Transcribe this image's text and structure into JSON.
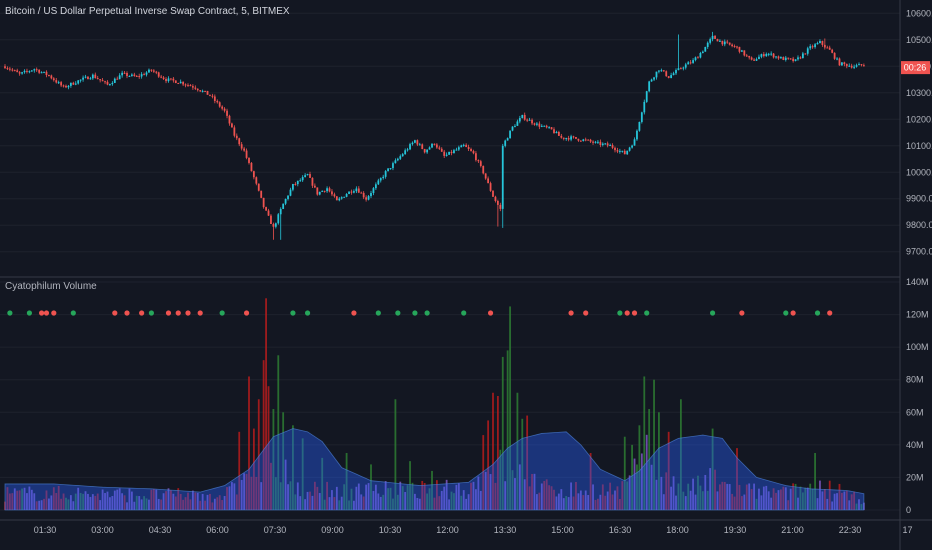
{
  "header": {
    "title": "Bitcoin / US Dollar Perpetual Inverse Swap Contract, 5, BITMEX"
  },
  "indicator": {
    "title": "Cyatophilum Volume"
  },
  "colors": {
    "background": "#131722",
    "up": "#26c6da",
    "down": "#ef5350",
    "dot_up": "#26a65b",
    "dot_down": "#ef5350",
    "vol_up": "#2e7d32",
    "vol_down": "#b71c1c",
    "vol_neutral": "#7e57c2",
    "ma_area": "#2962ff",
    "price_tag": "#ef5350"
  },
  "price_tag": {
    "label": "00:26",
    "value": 10395
  },
  "chart_data": [
    {
      "type": "candlestick",
      "title": "Bitcoin / US Dollar Perpetual Inverse Swap Contract, 5, BITMEX",
      "x_ticks": [
        "01:30",
        "03:00",
        "04:30",
        "06:00",
        "07:30",
        "09:00",
        "10:30",
        "12:00",
        "13:30",
        "15:00",
        "16:30",
        "18:00",
        "19:30",
        "21:00",
        "22:30",
        "17"
      ],
      "y_ticks": [
        9700,
        9800,
        9900,
        10000,
        10100,
        10200,
        10300,
        10400,
        10500,
        10600
      ],
      "y_tick_labels": [
        "9700.0",
        "9800.0",
        "9900.0",
        "10000.0",
        "10100.0",
        "10200.0",
        "10300.0",
        "10400.0",
        "10500.0",
        "10600.0"
      ],
      "ylim": [
        9665,
        10620
      ],
      "close_path": [
        [
          0,
          10400
        ],
        [
          6,
          10370
        ],
        [
          12,
          10390
        ],
        [
          18,
          10365
        ],
        [
          24,
          10320
        ],
        [
          30,
          10345
        ],
        [
          36,
          10365
        ],
        [
          42,
          10330
        ],
        [
          48,
          10370
        ],
        [
          54,
          10360
        ],
        [
          60,
          10385
        ],
        [
          66,
          10350
        ],
        [
          72,
          10340
        ],
        [
          78,
          10320
        ],
        [
          84,
          10290
        ],
        [
          90,
          10230
        ],
        [
          94,
          10140
        ],
        [
          98,
          10080
        ],
        [
          102,
          9980
        ],
        [
          106,
          9870
        ],
        [
          110,
          9790
        ],
        [
          114,
          9880
        ],
        [
          118,
          9950
        ],
        [
          124,
          9990
        ],
        [
          128,
          9920
        ],
        [
          132,
          9940
        ],
        [
          136,
          9890
        ],
        [
          140,
          9920
        ],
        [
          144,
          9940
        ],
        [
          148,
          9900
        ],
        [
          152,
          9950
        ],
        [
          156,
          10000
        ],
        [
          160,
          10040
        ],
        [
          164,
          10080
        ],
        [
          168,
          10120
        ],
        [
          172,
          10080
        ],
        [
          176,
          10110
        ],
        [
          180,
          10060
        ],
        [
          184,
          10080
        ],
        [
          188,
          10100
        ],
        [
          192,
          10070
        ],
        [
          196,
          10000
        ],
        [
          200,
          9910
        ],
        [
          203,
          9860
        ],
        [
          204,
          10100
        ],
        [
          208,
          10170
        ],
        [
          212,
          10210
        ],
        [
          218,
          10180
        ],
        [
          224,
          10160
        ],
        [
          228,
          10130
        ],
        [
          232,
          10130
        ],
        [
          238,
          10120
        ],
        [
          242,
          10110
        ],
        [
          248,
          10100
        ],
        [
          254,
          10070
        ],
        [
          258,
          10120
        ],
        [
          262,
          10270
        ],
        [
          264,
          10340
        ],
        [
          268,
          10390
        ],
        [
          272,
          10360
        ],
        [
          278,
          10400
        ],
        [
          282,
          10420
        ],
        [
          286,
          10460
        ],
        [
          290,
          10510
        ],
        [
          294,
          10490
        ],
        [
          300,
          10470
        ],
        [
          306,
          10420
        ],
        [
          312,
          10450
        ],
        [
          318,
          10430
        ],
        [
          324,
          10420
        ],
        [
          330,
          10470
        ],
        [
          334,
          10490
        ],
        [
          338,
          10460
        ],
        [
          342,
          10410
        ],
        [
          348,
          10400
        ],
        [
          352,
          10405
        ]
      ],
      "highlights": [
        [
          110,
          9745
        ],
        [
          113,
          9745
        ],
        [
          202,
          9795
        ],
        [
          204,
          9790
        ],
        [
          276,
          10520
        ],
        [
          290,
          10530
        ],
        [
          336,
          10505
        ]
      ]
    },
    {
      "type": "bar",
      "title": "Cyatophilum Volume",
      "y_ticks": [
        0,
        20,
        40,
        60,
        80,
        100,
        120,
        140
      ],
      "y_tick_labels": [
        "0",
        "20M",
        "40M",
        "60M",
        "80M",
        "100M",
        "120M",
        "140M"
      ],
      "ylim": [
        0,
        140
      ],
      "unit": "M",
      "base_volume": [
        [
          0,
          10
        ],
        [
          30,
          10
        ],
        [
          60,
          9
        ],
        [
          90,
          9
        ],
        [
          100,
          18
        ],
        [
          110,
          26
        ],
        [
          116,
          22
        ],
        [
          124,
          12
        ],
        [
          140,
          11
        ],
        [
          150,
          12
        ],
        [
          170,
          12
        ],
        [
          190,
          13
        ],
        [
          200,
          25
        ],
        [
          210,
          28
        ],
        [
          220,
          13
        ],
        [
          240,
          12
        ],
        [
          255,
          12
        ],
        [
          262,
          34
        ],
        [
          270,
          18
        ],
        [
          280,
          12
        ],
        [
          290,
          18
        ],
        [
          300,
          12
        ],
        [
          320,
          10
        ],
        [
          330,
          14
        ],
        [
          345,
          8
        ],
        [
          352,
          7
        ]
      ],
      "spikes": [
        [
          96,
          48
        ],
        [
          100,
          82
        ],
        [
          102,
          50
        ],
        [
          104,
          68
        ],
        [
          106,
          92
        ],
        [
          107,
          130
        ],
        [
          108,
          76
        ],
        [
          110,
          62
        ],
        [
          112,
          95
        ],
        [
          114,
          60
        ],
        [
          118,
          52
        ],
        [
          122,
          44
        ],
        [
          130,
          32
        ],
        [
          140,
          35
        ],
        [
          150,
          28
        ],
        [
          160,
          68
        ],
        [
          166,
          30
        ],
        [
          175,
          24
        ],
        [
          196,
          46
        ],
        [
          198,
          55
        ],
        [
          200,
          72
        ],
        [
          202,
          70
        ],
        [
          204,
          94
        ],
        [
          206,
          98
        ],
        [
          207,
          125
        ],
        [
          210,
          72
        ],
        [
          212,
          56
        ],
        [
          214,
          58
        ],
        [
          240,
          35
        ],
        [
          254,
          45
        ],
        [
          257,
          40
        ],
        [
          260,
          52
        ],
        [
          262,
          82
        ],
        [
          264,
          62
        ],
        [
          266,
          80
        ],
        [
          268,
          60
        ],
        [
          272,
          48
        ],
        [
          277,
          68
        ],
        [
          290,
          50
        ],
        [
          300,
          38
        ],
        [
          332,
          35
        ],
        [
          338,
          18
        ],
        [
          342,
          16
        ]
      ],
      "ma_area": [
        [
          0,
          16
        ],
        [
          20,
          16
        ],
        [
          40,
          14
        ],
        [
          60,
          13
        ],
        [
          80,
          11
        ],
        [
          90,
          15
        ],
        [
          100,
          25
        ],
        [
          105,
          35
        ],
        [
          110,
          45
        ],
        [
          118,
          50
        ],
        [
          124,
          48
        ],
        [
          130,
          42
        ],
        [
          138,
          26
        ],
        [
          150,
          18
        ],
        [
          170,
          15
        ],
        [
          190,
          17
        ],
        [
          200,
          28
        ],
        [
          206,
          38
        ],
        [
          212,
          44
        ],
        [
          220,
          47
        ],
        [
          230,
          48
        ],
        [
          236,
          40
        ],
        [
          244,
          25
        ],
        [
          254,
          18
        ],
        [
          260,
          24
        ],
        [
          268,
          38
        ],
        [
          276,
          44
        ],
        [
          286,
          46
        ],
        [
          294,
          44
        ],
        [
          300,
          32
        ],
        [
          308,
          20
        ],
        [
          320,
          15
        ],
        [
          330,
          13
        ],
        [
          345,
          12
        ],
        [
          352,
          10
        ]
      ],
      "dots": [
        {
          "x": 2,
          "dir": "up"
        },
        {
          "x": 10,
          "dir": "up"
        },
        {
          "x": 15,
          "dir": "down"
        },
        {
          "x": 17,
          "dir": "down"
        },
        {
          "x": 20,
          "dir": "down"
        },
        {
          "x": 28,
          "dir": "up"
        },
        {
          "x": 45,
          "dir": "down"
        },
        {
          "x": 50,
          "dir": "down"
        },
        {
          "x": 56,
          "dir": "down"
        },
        {
          "x": 60,
          "dir": "up"
        },
        {
          "x": 67,
          "dir": "down"
        },
        {
          "x": 71,
          "dir": "down"
        },
        {
          "x": 75,
          "dir": "down"
        },
        {
          "x": 80,
          "dir": "down"
        },
        {
          "x": 89,
          "dir": "up"
        },
        {
          "x": 99,
          "dir": "down"
        },
        {
          "x": 118,
          "dir": "up"
        },
        {
          "x": 124,
          "dir": "up"
        },
        {
          "x": 143,
          "dir": "down"
        },
        {
          "x": 153,
          "dir": "up"
        },
        {
          "x": 161,
          "dir": "up"
        },
        {
          "x": 168,
          "dir": "up"
        },
        {
          "x": 173,
          "dir": "up"
        },
        {
          "x": 188,
          "dir": "up"
        },
        {
          "x": 199,
          "dir": "down"
        },
        {
          "x": 232,
          "dir": "down"
        },
        {
          "x": 238,
          "dir": "down"
        },
        {
          "x": 252,
          "dir": "up"
        },
        {
          "x": 255,
          "dir": "down"
        },
        {
          "x": 258,
          "dir": "down"
        },
        {
          "x": 263,
          "dir": "up"
        },
        {
          "x": 290,
          "dir": "up"
        },
        {
          "x": 302,
          "dir": "down"
        },
        {
          "x": 320,
          "dir": "up"
        },
        {
          "x": 323,
          "dir": "down"
        },
        {
          "x": 333,
          "dir": "up"
        },
        {
          "x": 338,
          "dir": "down"
        }
      ]
    }
  ]
}
